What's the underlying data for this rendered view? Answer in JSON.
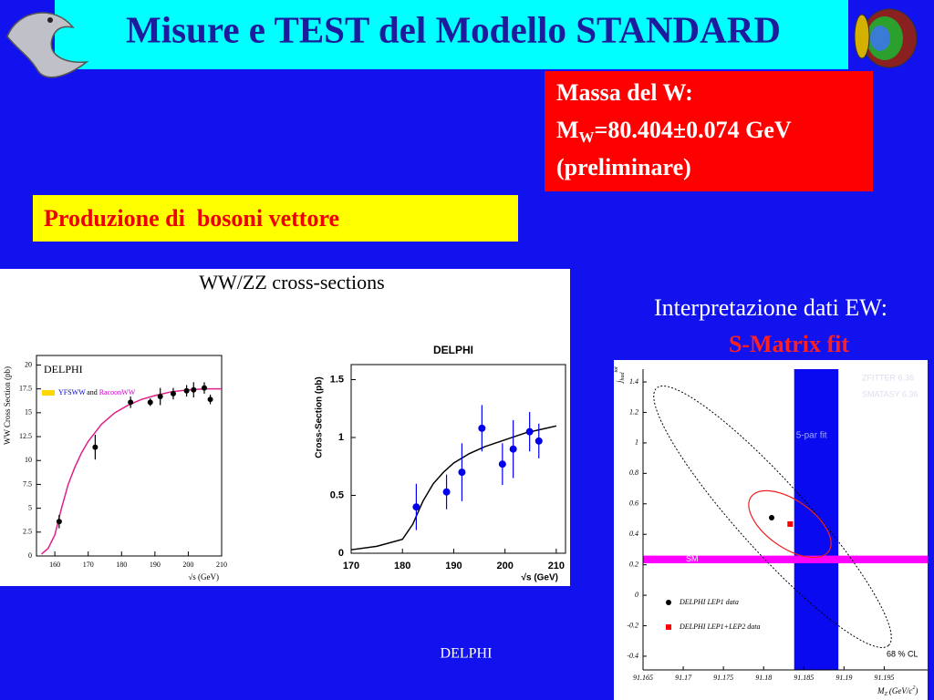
{
  "header": {
    "title": "Misure e TEST del Modello STANDARD"
  },
  "mass_box": {
    "line1": "Massa del W:",
    "symbol": "M",
    "subscript": "W",
    "value": "=80.404±0.074 GeV",
    "note": "(preliminare)"
  },
  "production_box": {
    "text": "Produzione di  bosoni vettore"
  },
  "panel": {
    "title": "WW/ZZ cross-sections"
  },
  "ew_caption": {
    "line1": "Interpretazione dati EW:",
    "line2": "S-Matrix fit"
  },
  "footer": {
    "text": "DELPHI"
  },
  "chart_data": [
    {
      "type": "scatter",
      "title": "DELPHI",
      "x_label": "√s (GeV)",
      "y_label": "WW Cross Section (pb)",
      "legend": [
        {
          "text": "YFSWW",
          "color": "#0000cc"
        },
        {
          "text": "and",
          "color": "#000000"
        },
        {
          "text": "RacoonWW",
          "color": "#cc00cc"
        }
      ],
      "xlim": [
        154.5,
        210
      ],
      "ylim": [
        0,
        21
      ],
      "xticks": [
        160,
        170,
        180,
        190,
        200,
        210
      ],
      "yticks": [
        0,
        2.5,
        5,
        7.5,
        10,
        12.5,
        15,
        17.5,
        20
      ],
      "points": {
        "color": "#000000",
        "x": [
          161.3,
          172.1,
          182.7,
          188.6,
          191.6,
          195.5,
          199.5,
          201.6,
          204.8,
          206.6
        ],
        "values": [
          3.6,
          11.4,
          16.1,
          16.1,
          16.7,
          17.0,
          17.3,
          17.4,
          17.6,
          16.4
        ],
        "errors": [
          0.7,
          1.3,
          0.6,
          0.4,
          0.9,
          0.6,
          0.6,
          0.8,
          0.6,
          0.5
        ]
      },
      "curve": {
        "color": "#e0208a",
        "x": [
          156,
          158,
          160,
          162,
          164,
          166,
          168,
          170,
          174,
          178,
          182,
          186,
          190,
          195,
          200,
          205,
          210
        ],
        "values": [
          0.2,
          0.8,
          2.2,
          5.0,
          7.5,
          9.3,
          10.8,
          12.0,
          13.8,
          15.0,
          15.8,
          16.4,
          16.8,
          17.2,
          17.4,
          17.5,
          17.5
        ]
      }
    },
    {
      "type": "scatter",
      "title": "DELPHI",
      "x_label": "√s (GeV)",
      "y_label": "Cross-Section (pb)",
      "xlim": [
        170,
        211.8
      ],
      "ylim": [
        0,
        1.63
      ],
      "xticks": [
        170,
        180,
        190,
        200,
        210
      ],
      "yticks": [
        0,
        0.5,
        1,
        1.5
      ],
      "points": {
        "color": "#0000ee",
        "x": [
          182.7,
          188.6,
          191.6,
          195.5,
          199.5,
          201.6,
          204.8,
          206.6
        ],
        "values": [
          0.4,
          0.53,
          0.7,
          1.08,
          0.77,
          0.9,
          1.05,
          0.97
        ],
        "errors": [
          0.2,
          0.15,
          0.25,
          0.2,
          0.18,
          0.25,
          0.17,
          0.15
        ]
      },
      "curve": {
        "color": "#000000",
        "x": [
          170,
          175,
          180,
          182,
          184,
          186,
          188,
          190,
          193,
          196,
          200,
          204,
          208,
          210
        ],
        "values": [
          0.03,
          0.06,
          0.12,
          0.25,
          0.45,
          0.6,
          0.7,
          0.78,
          0.86,
          0.92,
          0.98,
          1.04,
          1.08,
          1.1
        ]
      }
    },
    {
      "type": "scatter",
      "y_label": {
        "symbol": "j",
        "sub": "had",
        "sup": "tot"
      },
      "x_label": {
        "symbol": "M",
        "sub": "Z",
        "unit": "(GeV/c",
        "sup": "2",
        "close": ")"
      },
      "xlim": [
        91.165,
        91.2004
      ],
      "ylim": [
        -0.49,
        1.484
      ],
      "xticks": [
        91.165,
        91.17,
        91.175,
        91.18,
        91.185,
        91.19,
        91.195
      ],
      "yticks": [
        1.4,
        1.2,
        1,
        0.8,
        0.6,
        0.4,
        0.2,
        0,
        -0.2,
        -0.4
      ],
      "programs": [
        "ZFITTER 6.36",
        "SMATASY 6.36"
      ],
      "cl_label": "68 % CL",
      "vband": {
        "label": "5-par fit",
        "color": "#0a0af0",
        "range": [
          91.1838,
          91.1893
        ]
      },
      "hband": {
        "label": "SM",
        "color": "#ff00ff",
        "range": [
          0.21,
          0.26
        ]
      },
      "series": [
        {
          "name": "DELPHI LEP1 data",
          "color": "#000000",
          "x": 91.181,
          "value": 0.509
        },
        {
          "name": "DELPHI LEP1+LEP2 data",
          "color": "#ff0000",
          "x": 91.1833,
          "value": 0.467
        }
      ]
    }
  ]
}
